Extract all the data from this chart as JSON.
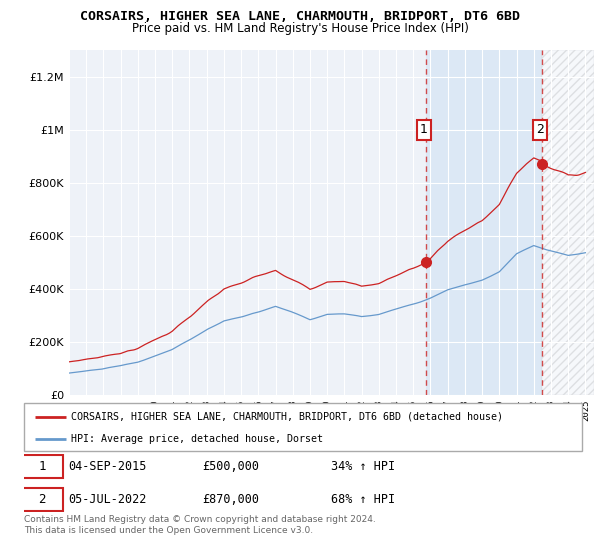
{
  "title": "CORSAIRS, HIGHER SEA LANE, CHARMOUTH, BRIDPORT, DT6 6BD",
  "subtitle": "Price paid vs. HM Land Registry's House Price Index (HPI)",
  "hpi_color": "#6699cc",
  "sale_color": "#cc2222",
  "marker_date_1": 2015.75,
  "marker_price_1": 500000,
  "marker_date_2": 2022.5,
  "marker_price_2": 870000,
  "vline_1": 2015.75,
  "vline_2": 2022.5,
  "annotation_1": "1",
  "annotation_2": "2",
  "ylim_max": 1300000,
  "xlim_min": 1995,
  "xlim_max": 2025.5,
  "legend_line1": "CORSAIRS, HIGHER SEA LANE, CHARMOUTH, BRIDPORT, DT6 6BD (detached house)",
  "legend_line2": "HPI: Average price, detached house, Dorset",
  "note1_label": "1",
  "note1_date": "04-SEP-2015",
  "note1_price": "£500,000",
  "note1_hpi": "34% ↑ HPI",
  "note2_label": "2",
  "note2_date": "05-JUL-2022",
  "note2_price": "£870,000",
  "note2_hpi": "68% ↑ HPI",
  "footer": "Contains HM Land Registry data © Crown copyright and database right 2024.\nThis data is licensed under the Open Government Licence v3.0.",
  "bg_color": "#eef2f8",
  "shade_color": "#dce8f5",
  "hatch_color": "#cccccc"
}
